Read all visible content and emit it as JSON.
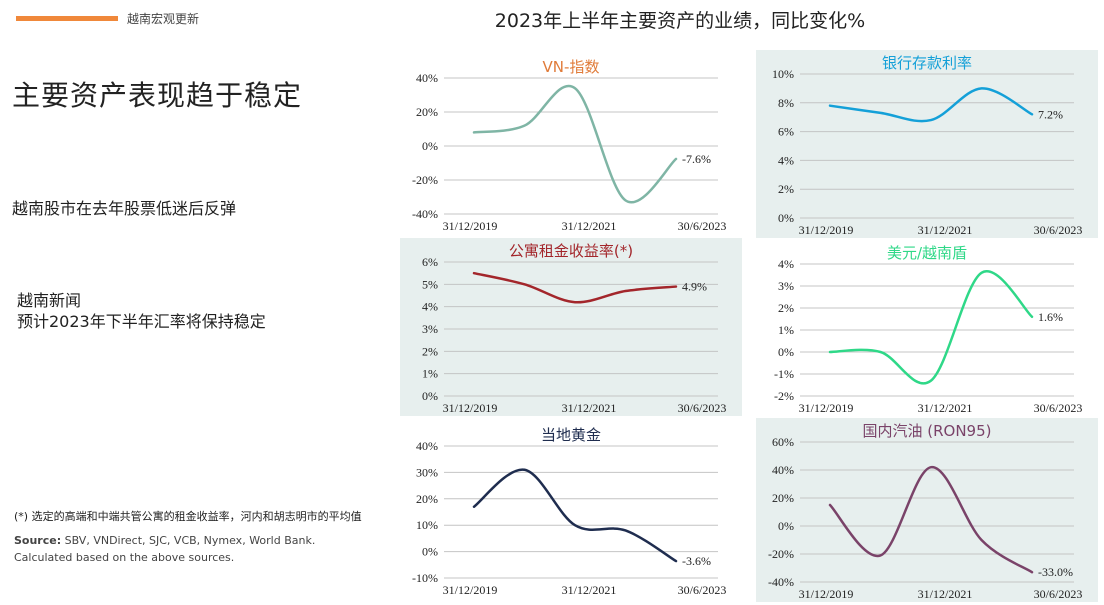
{
  "header": {
    "section_tag": "越南宏观更新",
    "title": "2023年上半年主要资产的业绩，同比变化%"
  },
  "left": {
    "headline": "主要资产表现趋于稳定",
    "point1": "越南股市在去年股票低迷后反弹",
    "point2_line1": "越南新闻",
    "point2_line2": "预计2023年下半年汇率将保持稳定",
    "footnote": "(*) 选定的高端和中端共管公寓的租金收益率，河内和胡志明市的平均值",
    "source_label": "Source:",
    "source_text": " SBV, VNDirect, SJC, VCB, Nymex, World Bank.",
    "source_line2": "Calculated based on the above sources."
  },
  "chart_data": [
    {
      "type": "line",
      "title": "VN-指数",
      "title_color": "#e07b39",
      "line_color": "#7fb5a5",
      "shaded": false,
      "x_labels": [
        "31/12/2019",
        "31/12/2021",
        "30/6/2023"
      ],
      "y_ticks": [
        "40%",
        "20%",
        "0%",
        "-20%",
        "-40%"
      ],
      "ylim": [
        -40,
        40
      ],
      "series": [
        {
          "x": 0.0,
          "y": 8
        },
        {
          "x": 0.25,
          "y": 12
        },
        {
          "x": 0.5,
          "y": 34
        },
        {
          "x": 0.75,
          "y": -32
        },
        {
          "x": 1.0,
          "y": -7.6
        }
      ],
      "end_label": "-7.6%"
    },
    {
      "type": "line",
      "title": "银行存款利率",
      "title_color": "#14a0d8",
      "line_color": "#14a0d8",
      "shaded": true,
      "x_labels": [
        "31/12/2019",
        "31/12/2021",
        "30/6/2023"
      ],
      "y_ticks": [
        "10%",
        "8%",
        "6%",
        "4%",
        "2%",
        "0%"
      ],
      "ylim": [
        0,
        10
      ],
      "series": [
        {
          "x": 0.0,
          "y": 7.8
        },
        {
          "x": 0.25,
          "y": 7.3
        },
        {
          "x": 0.5,
          "y": 6.8
        },
        {
          "x": 0.75,
          "y": 9.0
        },
        {
          "x": 1.0,
          "y": 7.2
        }
      ],
      "end_label": "7.2%"
    },
    {
      "type": "line",
      "title": "公寓租金收益率(*)",
      "title_color": "#a3262b",
      "line_color": "#a3262b",
      "shaded": true,
      "x_labels": [
        "31/12/2019",
        "31/12/2021",
        "30/6/2023"
      ],
      "y_ticks": [
        "6%",
        "5%",
        "4%",
        "3%",
        "2%",
        "1%",
        "0%"
      ],
      "ylim": [
        0,
        6
      ],
      "series": [
        {
          "x": 0.0,
          "y": 5.5
        },
        {
          "x": 0.25,
          "y": 5.0
        },
        {
          "x": 0.5,
          "y": 4.2
        },
        {
          "x": 0.75,
          "y": 4.7
        },
        {
          "x": 1.0,
          "y": 4.9
        }
      ],
      "end_label": "4.9%"
    },
    {
      "type": "line",
      "title": "美元/越南盾",
      "title_color": "#2fd888",
      "line_color": "#2fd888",
      "shaded": false,
      "x_labels": [
        "31/12/2019",
        "31/12/2021",
        "30/6/2023"
      ],
      "y_ticks": [
        "4%",
        "3%",
        "2%",
        "1%",
        "0%",
        "-1%",
        "-2%"
      ],
      "ylim": [
        -2,
        4
      ],
      "series": [
        {
          "x": 0.0,
          "y": 0.0
        },
        {
          "x": 0.25,
          "y": 0.0
        },
        {
          "x": 0.5,
          "y": -1.3
        },
        {
          "x": 0.75,
          "y": 3.6
        },
        {
          "x": 1.0,
          "y": 1.6
        }
      ],
      "end_label": "1.6%"
    },
    {
      "type": "line",
      "title": "当地黄金",
      "title_color": "#1f2d4f",
      "line_color": "#1f2d4f",
      "shaded": false,
      "x_labels": [
        "31/12/2019",
        "31/12/2021",
        "30/6/2023"
      ],
      "y_ticks": [
        "40%",
        "30%",
        "20%",
        "10%",
        "0%",
        "-10%"
      ],
      "ylim": [
        -10,
        40
      ],
      "series": [
        {
          "x": 0.0,
          "y": 17
        },
        {
          "x": 0.25,
          "y": 31
        },
        {
          "x": 0.5,
          "y": 10
        },
        {
          "x": 0.75,
          "y": 8
        },
        {
          "x": 1.0,
          "y": -3.6
        }
      ],
      "end_label": "-3.6%"
    },
    {
      "type": "line",
      "title": "国内汽油 (RON95)",
      "title_color": "#7a4369",
      "line_color": "#7a4369",
      "shaded": true,
      "x_labels": [
        "31/12/2019",
        "31/12/2021",
        "30/6/2023"
      ],
      "y_ticks": [
        "60%",
        "40%",
        "20%",
        "0%",
        "-20%",
        "-40%"
      ],
      "ylim": [
        -40,
        60
      ],
      "series": [
        {
          "x": 0.0,
          "y": 15
        },
        {
          "x": 0.25,
          "y": -21
        },
        {
          "x": 0.5,
          "y": 42
        },
        {
          "x": 0.75,
          "y": -10
        },
        {
          "x": 1.0,
          "y": -33
        }
      ],
      "end_label": "-33.0%"
    }
  ]
}
